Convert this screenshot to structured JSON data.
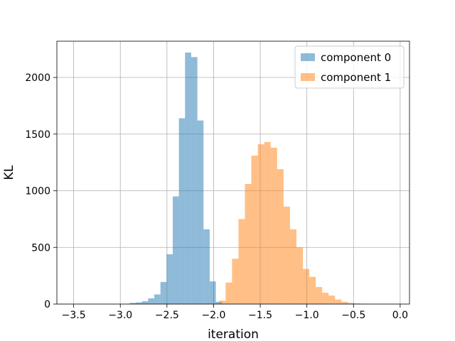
{
  "chart_data": {
    "type": "bar",
    "title": "",
    "xlabel": "iteration",
    "ylabel": "KL",
    "xlim": [
      -3.68,
      0.1
    ],
    "ylim": [
      0,
      2320
    ],
    "xticks": [
      -3.5,
      -3.0,
      -2.5,
      -2.0,
      -1.5,
      -1.0,
      -0.5,
      0.0
    ],
    "xtick_labels": [
      "−3.5",
      "−3.0",
      "−2.5",
      "−2.0",
      "−1.5",
      "−1.0",
      "−0.5",
      "0.0"
    ],
    "yticks": [
      0,
      500,
      1000,
      1500,
      2000
    ],
    "ytick_labels": [
      "0",
      "500",
      "1000",
      "1500",
      "2000"
    ],
    "grid": true,
    "legend_position": "top-right",
    "series": [
      {
        "name": "component 0",
        "color": "#1f77b4",
        "opacity": 0.5,
        "bin_edges": [
          -2.9,
          -2.834,
          -2.768,
          -2.702,
          -2.636,
          -2.57,
          -2.504,
          -2.438,
          -2.372,
          -2.306,
          -2.24,
          -2.174,
          -2.108,
          -2.042,
          -1.976,
          -1.91
        ],
        "counts": [
          10,
          15,
          25,
          50,
          85,
          195,
          440,
          950,
          1640,
          2220,
          2180,
          1620,
          660,
          200,
          20
        ]
      },
      {
        "name": "component 1",
        "color": "#ff7f0e",
        "opacity": 0.5,
        "bin_edges": [
          -1.94,
          -1.871,
          -1.802,
          -1.733,
          -1.664,
          -1.595,
          -1.526,
          -1.457,
          -1.388,
          -1.319,
          -1.25,
          -1.181,
          -1.112,
          -1.043,
          -0.974,
          -0.905,
          -0.836,
          -0.767,
          -0.698,
          -0.629,
          -0.56,
          -0.491,
          -0.422,
          -0.353
        ],
        "counts": [
          30,
          190,
          400,
          750,
          1060,
          1310,
          1410,
          1430,
          1380,
          1190,
          860,
          660,
          500,
          310,
          240,
          150,
          100,
          75,
          40,
          20,
          10,
          5,
          2
        ]
      }
    ]
  }
}
